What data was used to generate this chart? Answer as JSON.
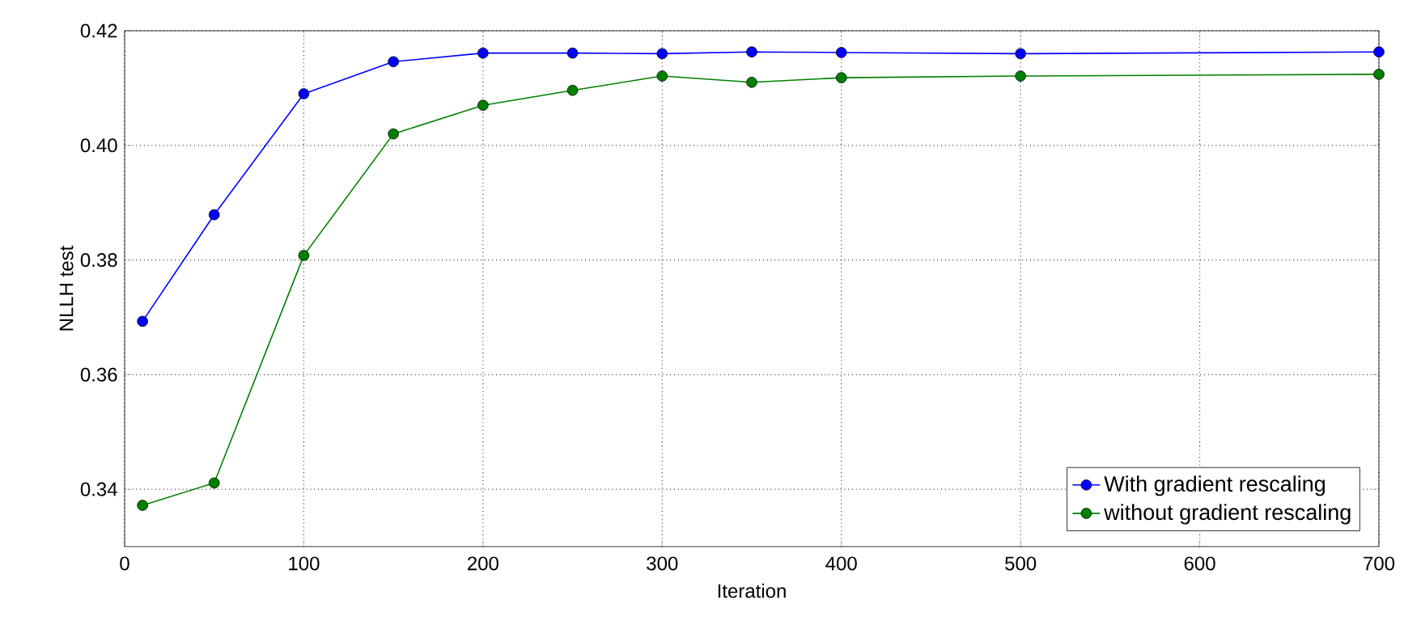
{
  "chart_data": {
    "type": "line",
    "xlabel": "Iteration",
    "ylabel": "NLLH test",
    "x": [
      10,
      50,
      100,
      150,
      200,
      250,
      300,
      350,
      400,
      500,
      700
    ],
    "series": [
      {
        "name": "With gradient rescaling",
        "color": "#0000ff",
        "values": [
          0.3693,
          0.3879,
          0.409,
          0.4146,
          0.4161,
          0.4161,
          0.416,
          0.4163,
          0.4162,
          0.416,
          0.4163
        ]
      },
      {
        "name": "without gradient rescaling",
        "color": "#008000",
        "values": [
          0.3372,
          0.3411,
          0.3808,
          0.402,
          0.407,
          0.4096,
          0.4121,
          0.411,
          0.4118,
          0.4121,
          0.4124
        ]
      }
    ],
    "xlim": [
      0,
      700
    ],
    "ylim": [
      0.33,
      0.42
    ],
    "xticks": [
      0,
      100,
      200,
      300,
      400,
      500,
      600,
      700
    ],
    "yticks": [
      0.34,
      0.36,
      0.38,
      {
        "value": 0.4,
        "label": "0.40"
      },
      0.42
    ],
    "grid": true,
    "legend": "bottom right",
    "marker": "circle",
    "line_style": "solid"
  }
}
